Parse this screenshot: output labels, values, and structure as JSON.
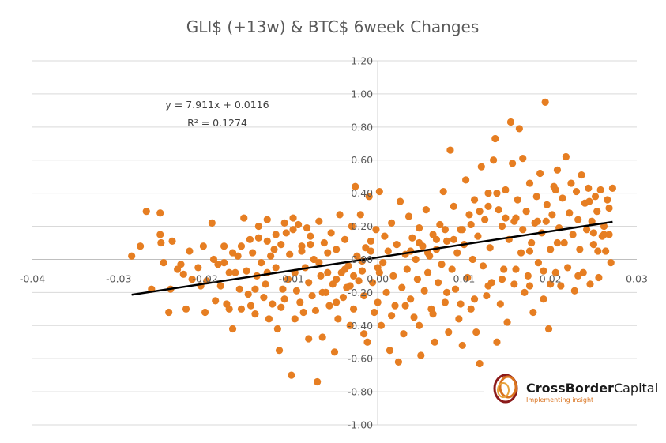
{
  "chart_data": {
    "type": "scatter",
    "title": "GLI$ (+13w) & BTC$ 6week Changes",
    "xlim": [
      -0.04,
      0.03
    ],
    "ylim": [
      -1.0,
      1.2
    ],
    "x_ticks": [
      "-0.04",
      "-0.03",
      "-0.02",
      "-0.01",
      "0.00",
      "0.01",
      "0.02",
      "0.03"
    ],
    "y_ticks": [
      "1.20",
      "1.00",
      "0.80",
      "0.60",
      "0.40",
      "0.20",
      "0.00",
      "-0.20",
      "-0.40",
      "-0.60",
      "-0.80",
      "-1.00"
    ],
    "grid": "horizontal",
    "point_color": "#E67E22",
    "trendline": {
      "type": "linear",
      "slope": 7.911,
      "intercept": 0.0116,
      "x_range": [
        -0.0285,
        0.0272
      ],
      "equation_label": "y = 7.911x + 0.0116",
      "r2_label": "R² = 0.1274",
      "color": "#000000"
    },
    "points": [
      [
        -0.0285,
        0.02
      ],
      [
        -0.0275,
        0.08
      ],
      [
        -0.0268,
        0.29
      ],
      [
        -0.0252,
        0.28
      ],
      [
        -0.0252,
        0.15
      ],
      [
        -0.0251,
        0.1
      ],
      [
        -0.0238,
        0.11
      ],
      [
        -0.0232,
        -0.06
      ],
      [
        -0.024,
        -0.18
      ],
      [
        -0.0242,
        -0.32
      ],
      [
        -0.0228,
        -0.03
      ],
      [
        -0.0225,
        -0.09
      ],
      [
        -0.0222,
        -0.3
      ],
      [
        -0.0215,
        -0.12
      ],
      [
        -0.0208,
        -0.05
      ],
      [
        -0.0205,
        -0.16
      ],
      [
        -0.02,
        -0.32
      ],
      [
        -0.0198,
        -0.13
      ],
      [
        -0.0192,
        0.22
      ],
      [
        -0.0185,
        -0.03
      ],
      [
        -0.0182,
        -0.16
      ],
      [
        -0.0178,
        0.08
      ],
      [
        -0.0175,
        -0.27
      ],
      [
        -0.0172,
        -0.3
      ],
      [
        -0.0168,
        -0.42
      ],
      [
        -0.0165,
        -0.08
      ],
      [
        -0.0162,
        0.02
      ],
      [
        -0.016,
        -0.18
      ],
      [
        -0.0155,
        0.25
      ],
      [
        -0.0152,
        -0.07
      ],
      [
        -0.015,
        -0.21
      ],
      [
        -0.0147,
        -0.28
      ],
      [
        -0.0145,
        0.04
      ],
      [
        -0.0142,
        -0.33
      ],
      [
        -0.014,
        -0.1
      ],
      [
        -0.0138,
        0.13
      ],
      [
        -0.0135,
        -0.02
      ],
      [
        -0.0132,
        -0.23
      ],
      [
        -0.013,
        -0.15
      ],
      [
        -0.0128,
        0.11
      ],
      [
        -0.0126,
        -0.36
      ],
      [
        -0.0124,
        0.02
      ],
      [
        -0.0122,
        -0.27
      ],
      [
        -0.012,
        0.06
      ],
      [
        -0.0118,
        -0.05
      ],
      [
        -0.0116,
        -0.42
      ],
      [
        -0.0114,
        -0.55
      ],
      [
        -0.0112,
        0.09
      ],
      [
        -0.011,
        -0.18
      ],
      [
        -0.0108,
        -0.24
      ],
      [
        -0.0106,
        0.16
      ],
      [
        -0.0104,
        -0.12
      ],
      [
        -0.0102,
        0.03
      ],
      [
        -0.01,
        -0.7
      ],
      [
        -0.0098,
        0.25
      ],
      [
        -0.0096,
        -0.08
      ],
      [
        -0.0094,
        -0.19
      ],
      [
        -0.0092,
        0.21
      ],
      [
        -0.009,
        -0.26
      ],
      [
        -0.0088,
        0.08
      ],
      [
        -0.0086,
        -0.32
      ],
      [
        -0.0084,
        -0.05
      ],
      [
        -0.0082,
        0.19
      ],
      [
        -0.008,
        -0.14
      ],
      [
        -0.0078,
        0.14
      ],
      [
        -0.0076,
        -0.22
      ],
      [
        -0.0074,
        0.0
      ],
      [
        -0.0072,
        -0.31
      ],
      [
        -0.007,
        -0.74
      ],
      [
        -0.0068,
        0.23
      ],
      [
        -0.0066,
        -0.1
      ],
      [
        -0.0064,
        -0.47
      ],
      [
        -0.0062,
        0.1
      ],
      [
        -0.006,
        -0.2
      ],
      [
        -0.0058,
        0.04
      ],
      [
        -0.0056,
        -0.28
      ],
      [
        -0.0054,
        0.16
      ],
      [
        -0.0052,
        -0.15
      ],
      [
        -0.005,
        -0.56
      ],
      [
        -0.0048,
        0.06
      ],
      [
        -0.0046,
        -0.36
      ],
      [
        -0.0044,
        0.27
      ],
      [
        -0.0042,
        -0.08
      ],
      [
        -0.004,
        -0.23
      ],
      [
        -0.0038,
        0.12
      ],
      [
        -0.0036,
        -0.17
      ],
      [
        -0.0034,
        -0.04
      ],
      [
        -0.0032,
        -0.4
      ],
      [
        -0.003,
        0.2
      ],
      [
        -0.0028,
        -0.3
      ],
      [
        -0.0026,
        0.44
      ],
      [
        -0.0024,
        0.02
      ],
      [
        -0.0022,
        -0.13
      ],
      [
        -0.002,
        0.27
      ],
      [
        -0.0018,
        -0.07
      ],
      [
        -0.0016,
        -0.22
      ],
      [
        -0.0014,
        0.07
      ],
      [
        -0.0012,
        -0.5
      ],
      [
        -0.001,
        0.38
      ],
      [
        -0.0008,
        0.11
      ],
      [
        -0.0006,
        -0.14
      ],
      [
        -0.0004,
        -0.32
      ],
      [
        -0.0002,
        0.18
      ],
      [
        0.0,
        -0.05
      ],
      [
        0.0002,
        0.41
      ],
      [
        0.0004,
        -0.4
      ],
      [
        0.0006,
        -0.02
      ],
      [
        0.0008,
        0.14
      ],
      [
        0.001,
        -0.2
      ],
      [
        0.0012,
        0.05
      ],
      [
        0.0014,
        -0.55
      ],
      [
        0.0016,
        0.22
      ],
      [
        0.0018,
        -0.1
      ],
      [
        0.002,
        -0.28
      ],
      [
        0.0022,
        0.09
      ],
      [
        0.0024,
        -0.62
      ],
      [
        0.0026,
        0.35
      ],
      [
        0.0028,
        -0.17
      ],
      [
        0.003,
        -0.45
      ],
      [
        0.0032,
        0.03
      ],
      [
        0.0034,
        -0.06
      ],
      [
        0.0036,
        0.26
      ],
      [
        0.0038,
        -0.24
      ],
      [
        0.004,
        0.13
      ],
      [
        0.0042,
        -0.35
      ],
      [
        0.0044,
        0.0
      ],
      [
        0.0046,
        -0.12
      ],
      [
        0.0048,
        0.19
      ],
      [
        0.005,
        -0.58
      ],
      [
        0.0052,
        0.08
      ],
      [
        0.0054,
        -0.19
      ],
      [
        0.0056,
        0.3
      ],
      [
        0.0058,
        -0.08
      ],
      [
        0.006,
        0.02
      ],
      [
        0.0062,
        -0.3
      ],
      [
        0.0064,
        0.15
      ],
      [
        0.0066,
        -0.5
      ],
      [
        0.0068,
        0.06
      ],
      [
        0.007,
        -0.14
      ],
      [
        0.0072,
        0.21
      ],
      [
        0.0074,
        -0.03
      ],
      [
        0.0076,
        0.41
      ],
      [
        0.0078,
        -0.26
      ],
      [
        0.008,
        0.11
      ],
      [
        0.0082,
        -0.44
      ],
      [
        0.0084,
        0.66
      ],
      [
        0.0086,
        -0.06
      ],
      [
        0.0088,
        0.32
      ],
      [
        0.009,
        -0.18
      ],
      [
        0.0092,
        0.04
      ],
      [
        0.0094,
        -0.36
      ],
      [
        0.0096,
        0.18
      ],
      [
        0.0098,
        -0.52
      ],
      [
        0.01,
        0.09
      ],
      [
        0.0102,
        0.48
      ],
      [
        0.0104,
        -0.11
      ],
      [
        0.0106,
        0.27
      ],
      [
        0.0108,
        -0.3
      ],
      [
        0.011,
        0.0
      ],
      [
        0.0112,
        0.36
      ],
      [
        0.0114,
        -0.44
      ],
      [
        0.0116,
        0.14
      ],
      [
        0.0118,
        -0.63
      ],
      [
        0.012,
        0.56
      ],
      [
        0.0122,
        -0.04
      ],
      [
        0.0124,
        0.24
      ],
      [
        0.0126,
        -0.22
      ],
      [
        0.0128,
        0.4
      ],
      [
        0.013,
        0.07
      ],
      [
        0.0132,
        -0.14
      ],
      [
        0.0134,
        0.6
      ],
      [
        0.0136,
        0.73
      ],
      [
        0.0138,
        -0.5
      ],
      [
        0.014,
        0.3
      ],
      [
        0.0142,
        -0.27
      ],
      [
        0.0144,
        0.2
      ],
      [
        0.0146,
        -0.06
      ],
      [
        0.0148,
        0.42
      ],
      [
        0.015,
        -0.38
      ],
      [
        0.0152,
        0.12
      ],
      [
        0.0154,
        0.83
      ],
      [
        0.0156,
        0.58
      ],
      [
        0.0158,
        -0.15
      ],
      [
        0.016,
        0.25
      ],
      [
        0.0162,
        0.36
      ],
      [
        0.0164,
        0.79
      ],
      [
        0.0166,
        0.04
      ],
      [
        0.0168,
        0.61
      ],
      [
        0.017,
        -0.2
      ],
      [
        0.0172,
        0.29
      ],
      [
        0.0174,
        -0.1
      ],
      [
        0.0176,
        0.46
      ],
      [
        0.0178,
        0.1
      ],
      [
        0.018,
        -0.32
      ],
      [
        0.0182,
        0.22
      ],
      [
        0.0184,
        0.38
      ],
      [
        0.0186,
        -0.02
      ],
      [
        0.0188,
        0.52
      ],
      [
        0.019,
        0.16
      ],
      [
        0.0192,
        -0.24
      ],
      [
        0.0194,
        0.95
      ],
      [
        0.0196,
        0.33
      ],
      [
        0.0198,
        -0.42
      ],
      [
        0.02,
        0.06
      ],
      [
        0.0202,
        0.27
      ],
      [
        0.0204,
        0.44
      ],
      [
        0.0206,
        -0.08
      ],
      [
        0.0208,
        0.54
      ],
      [
        0.021,
        0.19
      ],
      [
        0.0212,
        -0.16
      ],
      [
        0.0214,
        0.37
      ],
      [
        0.0216,
        0.1
      ],
      [
        0.0218,
        0.62
      ],
      [
        0.022,
        -0.05
      ],
      [
        0.0222,
        0.28
      ],
      [
        0.0224,
        0.46
      ],
      [
        0.0226,
        0.15
      ],
      [
        0.0228,
        -0.19
      ],
      [
        0.023,
        0.41
      ],
      [
        0.0232,
        0.24
      ],
      [
        0.0234,
        0.06
      ],
      [
        0.0236,
        0.51
      ],
      [
        0.0238,
        -0.08
      ],
      [
        0.024,
        0.34
      ],
      [
        0.0242,
        0.18
      ],
      [
        0.0244,
        0.43
      ],
      [
        0.0246,
        -0.15
      ],
      [
        0.0248,
        0.23
      ],
      [
        0.025,
        0.09
      ],
      [
        0.0252,
        0.38
      ],
      [
        0.0254,
        0.29
      ],
      [
        0.0256,
        -0.11
      ],
      [
        0.0258,
        0.42
      ],
      [
        0.026,
        0.14
      ],
      [
        0.0262,
        0.2
      ],
      [
        0.0264,
        0.05
      ],
      [
        0.0266,
        0.36
      ],
      [
        0.0268,
        0.31
      ],
      [
        0.027,
        -0.02
      ],
      [
        0.0272,
        0.43
      ],
      [
        0.02,
        -0.15
      ],
      [
        0.0232,
        -0.1
      ],
      [
        0.0245,
        0.35
      ],
      [
        0.025,
        0.16
      ],
      [
        0.0255,
        0.05
      ],
      [
        0.0262,
        0.15
      ],
      [
        0.0268,
        0.15
      ],
      [
        0.0206,
        0.42
      ],
      [
        0.0195,
        0.23
      ],
      [
        0.0185,
        0.23
      ],
      [
        0.0176,
        0.05
      ],
      [
        0.0168,
        0.18
      ],
      [
        0.0158,
        0.23
      ],
      [
        0.0148,
        0.25
      ],
      [
        0.0138,
        0.4
      ],
      [
        0.0128,
        0.32
      ],
      [
        0.0118,
        0.29
      ],
      [
        0.0108,
        0.21
      ],
      [
        0.0098,
        0.18
      ],
      [
        0.0088,
        0.12
      ],
      [
        0.0078,
        0.18
      ],
      [
        0.0068,
        0.12
      ],
      [
        0.0058,
        0.04
      ],
      [
        0.0048,
        0.1
      ],
      [
        0.0038,
        0.05
      ],
      [
        -0.019,
        0.0
      ],
      [
        -0.0178,
        -0.02
      ],
      [
        -0.0168,
        0.04
      ],
      [
        -0.0158,
        0.08
      ],
      [
        -0.0148,
        0.12
      ],
      [
        -0.0138,
        0.2
      ],
      [
        -0.0128,
        0.24
      ],
      [
        -0.0118,
        0.15
      ],
      [
        -0.0108,
        0.22
      ],
      [
        -0.0098,
        0.18
      ],
      [
        -0.0088,
        0.05
      ],
      [
        -0.0078,
        0.09
      ],
      [
        -0.0068,
        -0.02
      ],
      [
        -0.0058,
        -0.08
      ],
      [
        -0.0048,
        -0.12
      ],
      [
        -0.0038,
        -0.06
      ],
      [
        -0.0028,
        -0.1
      ],
      [
        -0.0018,
        -0.01
      ],
      [
        -0.0008,
        0.05
      ],
      [
        0.0002,
        -0.08
      ],
      [
        -0.0262,
        -0.18
      ],
      [
        -0.0248,
        -0.02
      ],
      [
        -0.0218,
        0.05
      ],
      [
        -0.0202,
        0.08
      ],
      [
        -0.0188,
        -0.25
      ],
      [
        -0.0172,
        -0.08
      ],
      [
        -0.0158,
        -0.3
      ],
      [
        -0.0142,
        -0.18
      ],
      [
        -0.0128,
        -0.08
      ],
      [
        -0.0112,
        -0.29
      ],
      [
        -0.0096,
        -0.36
      ],
      [
        -0.008,
        -0.48
      ],
      [
        -0.0064,
        -0.2
      ],
      [
        -0.0048,
        -0.26
      ],
      [
        -0.0032,
        -0.16
      ],
      [
        -0.0016,
        -0.45
      ],
      [
        0.0,
        -0.26
      ],
      [
        0.0016,
        -0.34
      ],
      [
        0.0032,
        -0.28
      ],
      [
        0.0048,
        -0.4
      ],
      [
        0.0064,
        -0.33
      ],
      [
        0.008,
        -0.2
      ],
      [
        0.0096,
        -0.27
      ],
      [
        0.0112,
        -0.24
      ],
      [
        0.0128,
        -0.16
      ],
      [
        0.0144,
        -0.12
      ],
      [
        0.016,
        -0.06
      ],
      [
        0.0176,
        -0.16
      ],
      [
        0.0192,
        -0.07
      ],
      [
        0.0208,
        0.1
      ]
    ]
  },
  "logo": {
    "name_bold": "CrossBorder",
    "name_regular": "Capital",
    "tagline": "Implementing insight"
  }
}
